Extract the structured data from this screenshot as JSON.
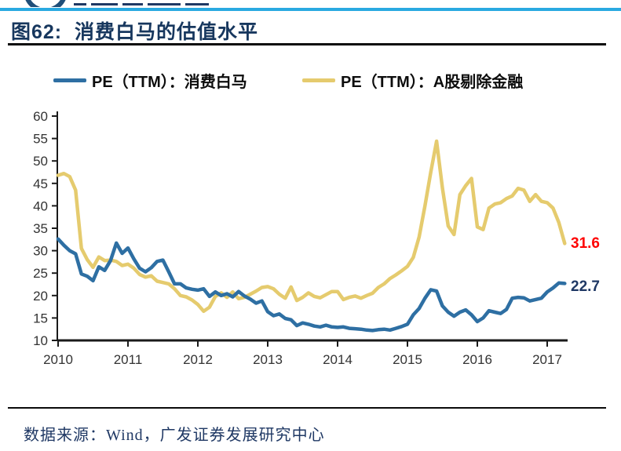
{
  "header": {
    "title": "图62:  消费白马的估值水平"
  },
  "legend": [
    {
      "label": "PE（TTM）：消费白马",
      "color": "#2e6fa3"
    },
    {
      "label": "PE（TTM）：A股剔除金融",
      "color": "#e5cb6e"
    }
  ],
  "annotations": {
    "yellow_end_value": "31.6",
    "yellow_end_color": "#fe0000",
    "blue_end_value": "22.7",
    "blue_end_color": "#1f3864"
  },
  "footer": {
    "source": "数据来源：Wind，广发证券发展研究中心"
  },
  "chart_data": {
    "type": "line",
    "title": "图62: 消费白马的估值水平",
    "x_unit": "month",
    "x_start": "2010-01",
    "x_end": "2017-04",
    "x_tick_labels": [
      "2010",
      "2011",
      "2012",
      "2013",
      "2014",
      "2015",
      "2016",
      "2017"
    ],
    "y_ticks": [
      10,
      15,
      20,
      25,
      30,
      35,
      40,
      45,
      50,
      55,
      60
    ],
    "ylim": [
      10,
      60
    ],
    "grid": false,
    "legend_position": "top",
    "axis_color": "#1a1a1a",
    "tick_label_color": "#333333",
    "series": [
      {
        "name": "PE（TTM）：A股剔除金融",
        "color": "#e5cb6e",
        "end_label": "31.6",
        "values": [
          46.8,
          47.2,
          46.5,
          43.5,
          30.5,
          28.0,
          26.3,
          28.6,
          27.8,
          27.9,
          27.6,
          26.7,
          27.0,
          26.1,
          24.7,
          24.1,
          24.4,
          23.2,
          22.9,
          22.6,
          21.5,
          20.0,
          19.7,
          19.0,
          18.0,
          16.5,
          17.4,
          19.8,
          20.6,
          19.6,
          20.8,
          19.3,
          19.6,
          20.3,
          21.0,
          21.8,
          22.0,
          21.5,
          20.3,
          19.4,
          21.9,
          18.9,
          19.6,
          20.6,
          19.8,
          19.5,
          20.2,
          20.9,
          20.9,
          19.1,
          19.6,
          19.9,
          19.4,
          20.0,
          20.5,
          21.8,
          22.6,
          23.8,
          24.6,
          25.5,
          26.5,
          28.5,
          33.0,
          40.0,
          47.5,
          54.4,
          44.0,
          35.5,
          33.6,
          42.5,
          44.5,
          46.1,
          35.3,
          34.7,
          39.5,
          40.4,
          40.7,
          41.6,
          42.2,
          43.9,
          43.5,
          41.0,
          42.5,
          41.0,
          40.7,
          39.5,
          36.3,
          31.6
        ]
      },
      {
        "name": "PE（TTM）：消费白马",
        "color": "#2e6fa3",
        "end_label": "22.7",
        "values": [
          32.6,
          31.2,
          30.0,
          29.3,
          24.8,
          24.3,
          23.3,
          26.4,
          25.6,
          27.8,
          31.7,
          29.4,
          30.6,
          28.2,
          26.1,
          25.3,
          26.2,
          27.6,
          27.9,
          25.3,
          22.6,
          22.6,
          21.7,
          21.4,
          21.2,
          21.5,
          19.8,
          20.8,
          20.0,
          20.4,
          19.7,
          20.9,
          19.9,
          19.2,
          18.3,
          18.8,
          16.4,
          15.5,
          15.9,
          14.9,
          14.6,
          13.3,
          13.9,
          13.6,
          13.2,
          13.0,
          13.4,
          13.0,
          12.9,
          13.0,
          12.7,
          12.6,
          12.5,
          12.3,
          12.2,
          12.4,
          12.5,
          12.3,
          12.7,
          13.1,
          13.6,
          15.7,
          17.1,
          19.4,
          21.3,
          21.0,
          17.7,
          16.3,
          15.4,
          16.3,
          16.8,
          15.7,
          14.2,
          15.0,
          16.6,
          16.3,
          16.0,
          16.9,
          19.4,
          19.6,
          19.5,
          18.8,
          19.1,
          19.4,
          20.8,
          21.7,
          22.8,
          22.7
        ]
      }
    ]
  }
}
